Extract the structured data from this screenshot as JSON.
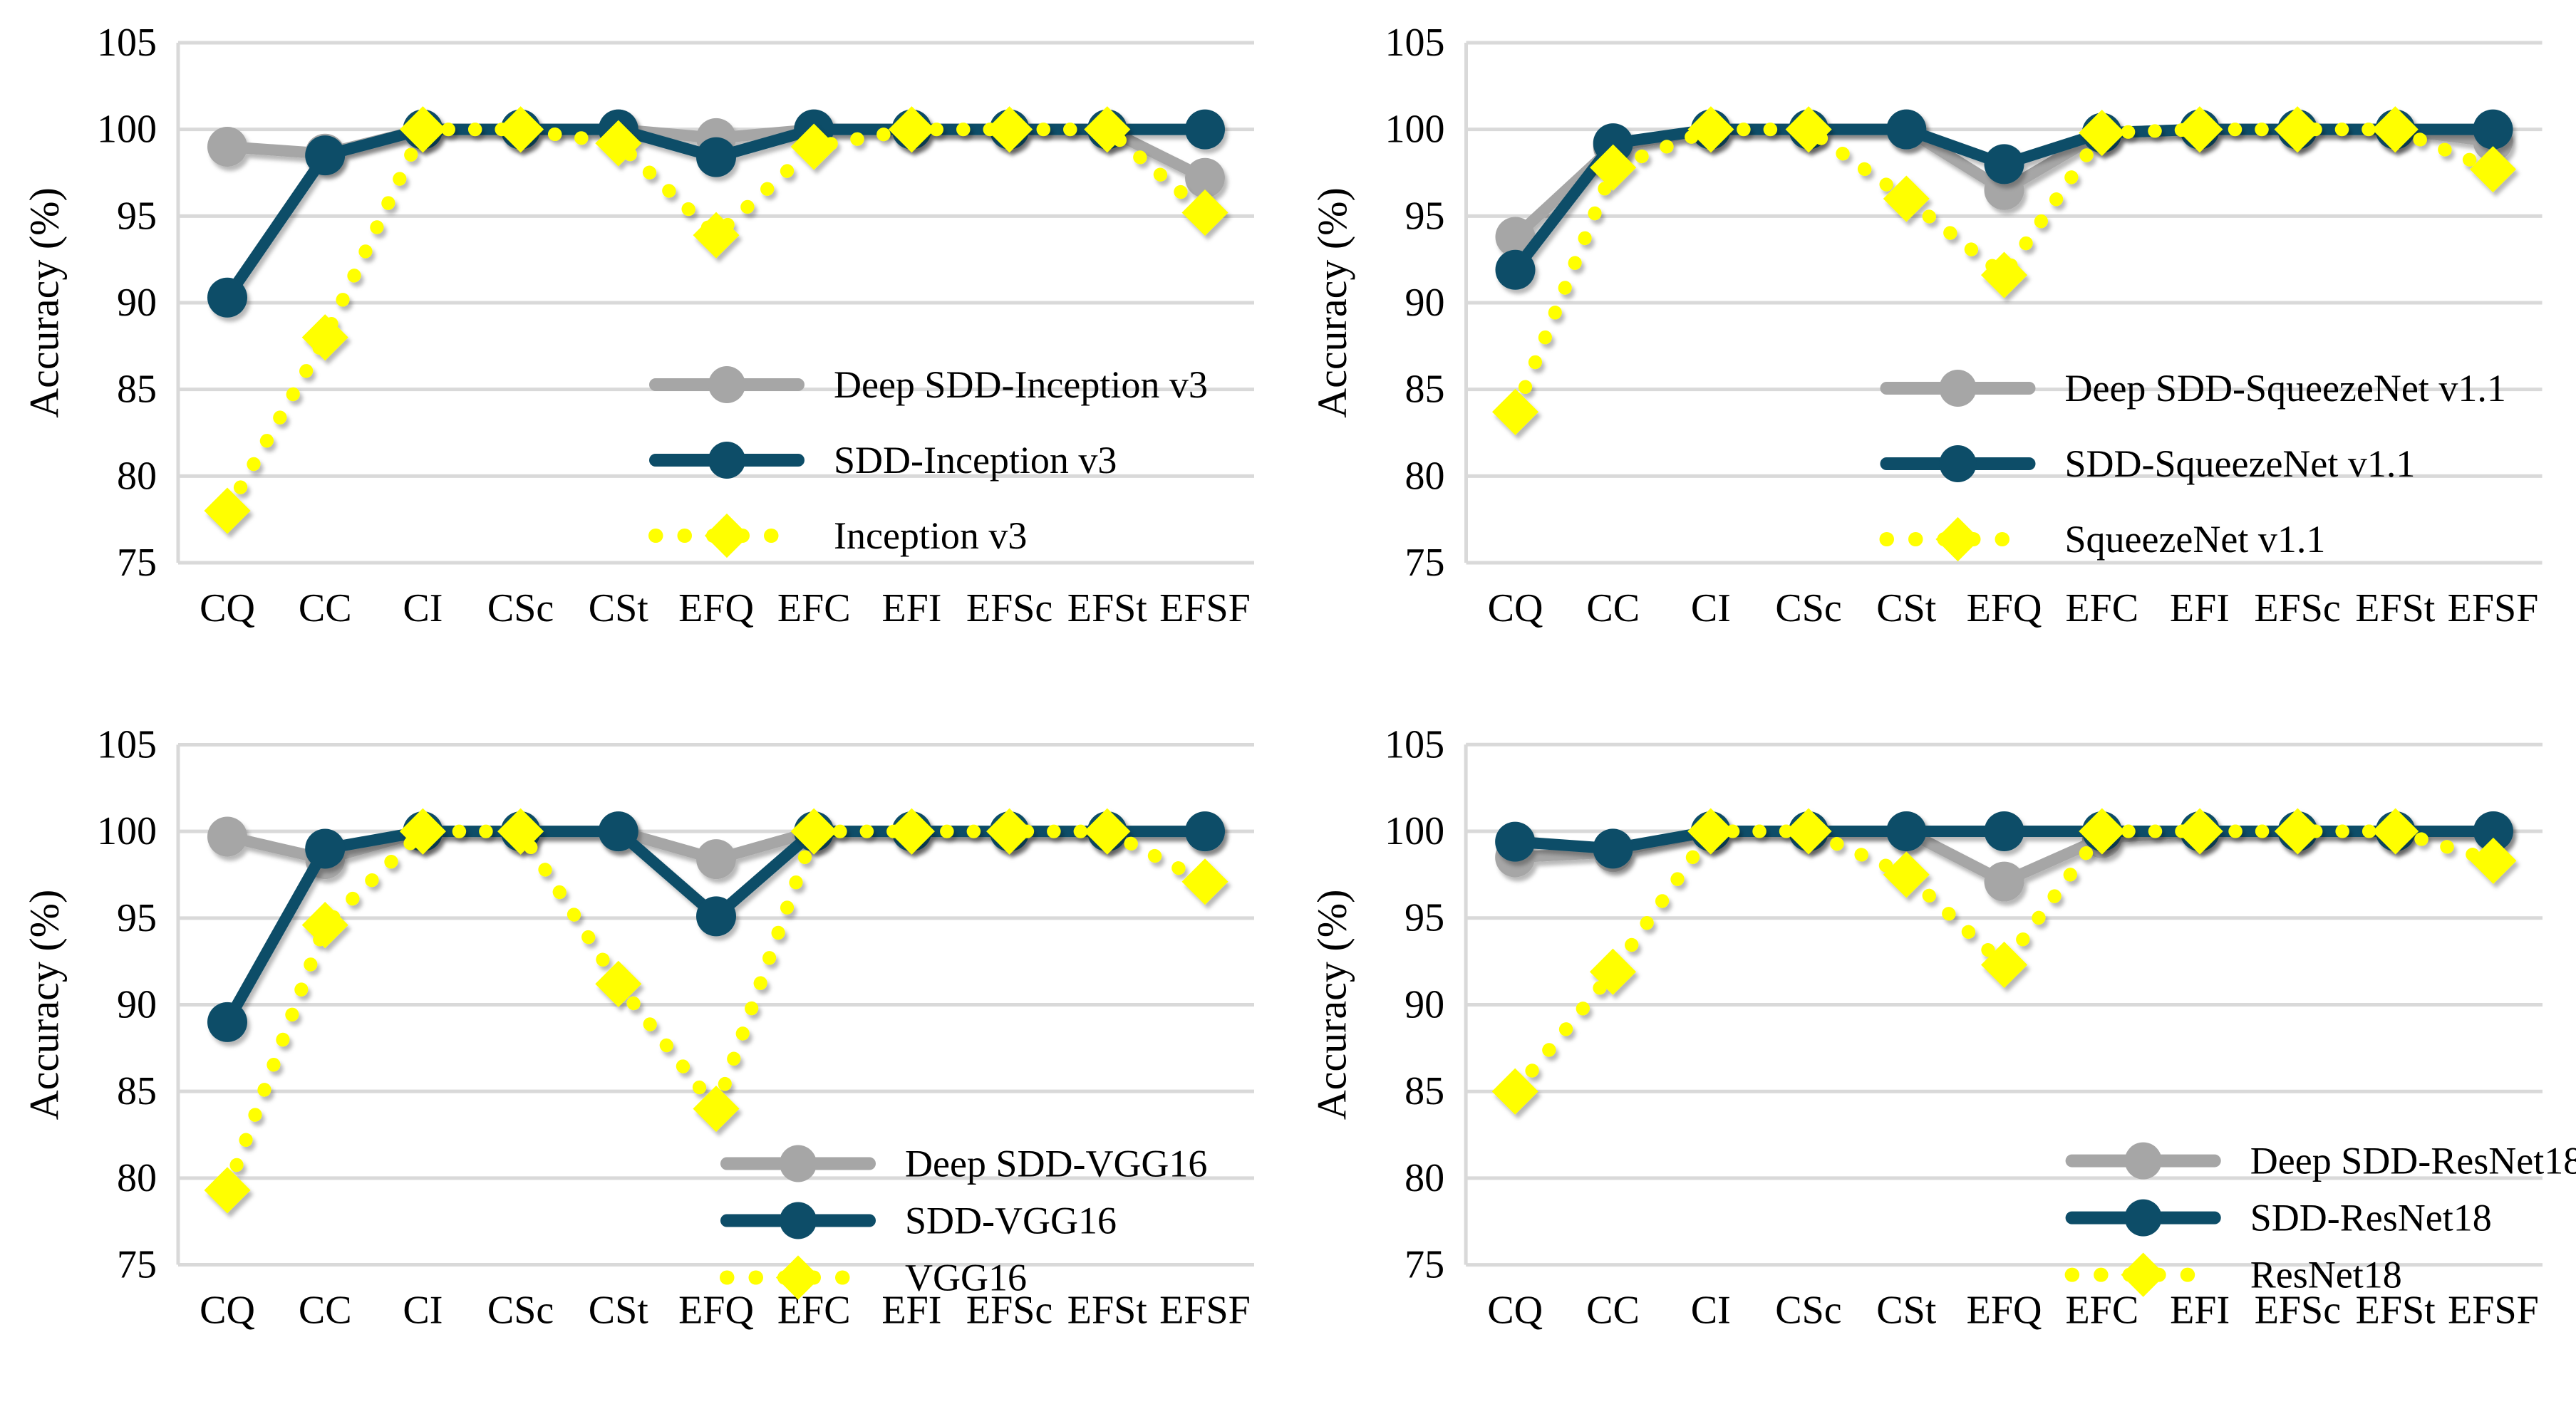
{
  "figure": {
    "background": "#ffffff",
    "layout": "2x2-grid"
  },
  "colors": {
    "navy": "#0d4d68",
    "gray": "#a6a6a6",
    "yellow": "#ffff00",
    "gridline": "#d9d9d9",
    "text": "#000000"
  },
  "chart_data": [
    {
      "type": "line",
      "position": "top-left",
      "title": "",
      "xlabel": "",
      "ylabel": "Accuracy (%)",
      "ylim": [
        75,
        105
      ],
      "yticks": [
        75,
        80,
        85,
        90,
        95,
        100,
        105
      ],
      "grid": "horizontal",
      "legend_position": "inside-lower-right",
      "categories": [
        "CQ",
        "CC",
        "CI",
        "CSc",
        "CSt",
        "EFQ",
        "EFC",
        "EFI",
        "EFSc",
        "EFSt",
        "EFSF"
      ],
      "series": [
        {
          "name": "Deep SDD-Inception v3",
          "color": "gray",
          "marker": "circle",
          "line": "solid",
          "values": [
            99.0,
            98.6,
            100,
            100,
            100,
            99.5,
            100,
            100,
            100,
            100,
            97.2
          ]
        },
        {
          "name": "SDD-Inception v3",
          "color": "navy",
          "marker": "circle",
          "line": "solid",
          "values": [
            90.3,
            98.5,
            100,
            100,
            100,
            98.4,
            100,
            100,
            100,
            100,
            100
          ]
        },
        {
          "name": "Inception v3",
          "color": "yellow",
          "marker": "diamond",
          "line": "dotted",
          "values": [
            78.0,
            88.0,
            100,
            100,
            99.2,
            93.9,
            99.0,
            100,
            100,
            100,
            95.2
          ]
        }
      ],
      "legend_geom": {
        "x": 920,
        "y": 540,
        "row_gap": 106
      }
    },
    {
      "type": "line",
      "position": "top-right",
      "title": "",
      "xlabel": "",
      "ylabel": "Accuracy (%)",
      "ylim": [
        75,
        105
      ],
      "yticks": [
        75,
        80,
        85,
        90,
        95,
        100,
        105
      ],
      "grid": "horizontal",
      "legend_position": "inside-lower-right",
      "categories": [
        "CQ",
        "CC",
        "CI",
        "CSc",
        "CSt",
        "EFQ",
        "EFC",
        "EFI",
        "EFSc",
        "EFSt",
        "EFSF"
      ],
      "series": [
        {
          "name": "Deep SDD-SqueezeNet v1.1",
          "color": "gray",
          "marker": "circle",
          "line": "solid",
          "values": [
            93.8,
            99.0,
            100,
            100,
            100,
            96.5,
            99.8,
            100,
            100,
            100,
            99.3
          ]
        },
        {
          "name": "SDD-SqueezeNet v1.1",
          "color": "navy",
          "marker": "circle",
          "line": "solid",
          "values": [
            91.9,
            99.2,
            100,
            100,
            100,
            98.0,
            99.8,
            100,
            100,
            100,
            100
          ]
        },
        {
          "name": "SqueezeNet v1.1",
          "color": "yellow",
          "marker": "diamond",
          "line": "dotted",
          "values": [
            83.7,
            97.8,
            100,
            100,
            96.0,
            91.6,
            99.8,
            100,
            100,
            100,
            97.7
          ]
        }
      ],
      "legend_geom": {
        "x": 840,
        "y": 545,
        "row_gap": 106
      }
    },
    {
      "type": "line",
      "position": "bottom-left",
      "title": "",
      "xlabel": "",
      "ylabel": "Accuracy (%)",
      "ylim": [
        75,
        105
      ],
      "yticks": [
        75,
        80,
        85,
        90,
        95,
        100,
        105
      ],
      "grid": "horizontal",
      "legend_position": "inside-lower-right",
      "categories": [
        "CQ",
        "CC",
        "CI",
        "CSc",
        "CSt",
        "EFQ",
        "EFC",
        "EFI",
        "EFSc",
        "EFSt",
        "EFSF"
      ],
      "series": [
        {
          "name": "Deep SDD-VGG16",
          "color": "gray",
          "marker": "circle",
          "line": "solid",
          "values": [
            99.7,
            98.4,
            100,
            100,
            100,
            98.4,
            100,
            100,
            100,
            100,
            100
          ]
        },
        {
          "name": "SDD-VGG16",
          "color": "navy",
          "marker": "circle",
          "line": "solid",
          "values": [
            89.0,
            99.0,
            100,
            100,
            100,
            95.1,
            100,
            100,
            100,
            100,
            100
          ]
        },
        {
          "name": "VGG16",
          "color": "yellow",
          "marker": "diamond",
          "line": "dotted",
          "values": [
            79.3,
            94.6,
            100,
            100,
            91.2,
            84.0,
            100,
            100,
            100,
            100,
            97.1
          ]
        }
      ],
      "legend_geom": {
        "x": 1020,
        "y": 648,
        "row_gap": 80
      }
    },
    {
      "type": "line",
      "position": "bottom-right",
      "title": "",
      "xlabel": "",
      "ylabel": "Accuracy (%)",
      "ylim": [
        75,
        105
      ],
      "yticks": [
        75,
        80,
        85,
        90,
        95,
        100,
        105
      ],
      "grid": "horizontal",
      "legend_position": "inside-lower-right",
      "categories": [
        "CQ",
        "CC",
        "CI",
        "CSc",
        "CSt",
        "EFQ",
        "EFC",
        "EFI",
        "EFSc",
        "EFSt",
        "EFSF"
      ],
      "series": [
        {
          "name": "Deep SDD-ResNet18",
          "color": "gray",
          "marker": "circle",
          "line": "solid",
          "values": [
            98.5,
            98.8,
            100,
            100,
            100,
            97.1,
            99.6,
            100,
            100,
            100,
            100
          ]
        },
        {
          "name": "SDD-ResNet18",
          "color": "navy",
          "marker": "circle",
          "line": "solid",
          "values": [
            99.4,
            99.0,
            100,
            100,
            100,
            100,
            100,
            100,
            100,
            100,
            100
          ]
        },
        {
          "name": "ResNet18",
          "color": "yellow",
          "marker": "diamond",
          "line": "dotted",
          "values": [
            85.0,
            91.9,
            100,
            100,
            97.5,
            92.3,
            100,
            100,
            100,
            100,
            98.3
          ]
        }
      ],
      "legend_geom": {
        "x": 1100,
        "y": 644,
        "row_gap": 80
      }
    }
  ]
}
